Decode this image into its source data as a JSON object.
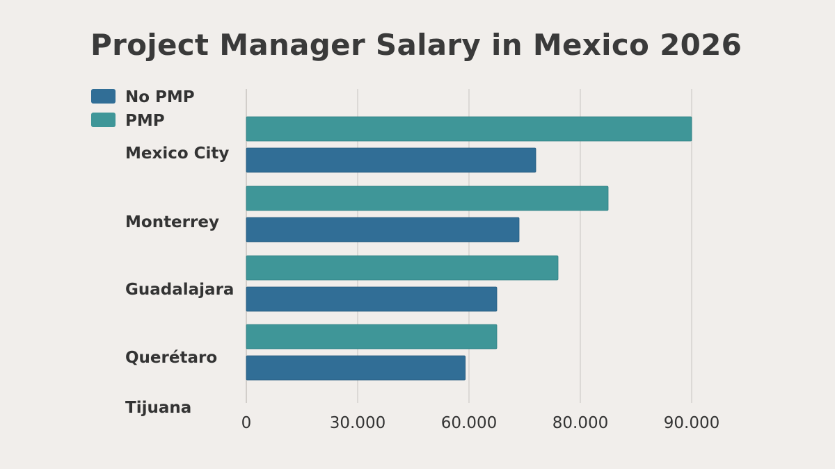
{
  "chart_data": {
    "type": "bar",
    "orientation": "horizontal",
    "title": "Project Manager Salary in Mexico 2026",
    "categories": [
      "Mexico City",
      "Monterrey",
      "Guadalajara",
      "Querétaro",
      "Tijuana"
    ],
    "series": [
      {
        "name": "No PMP",
        "color": "#316e96",
        "values": [
          72000,
          69000,
          65000,
          59000,
          null
        ]
      },
      {
        "name": "PMP",
        "color": "#3f9698",
        "values": [
          91000,
          82500,
          76000,
          65000,
          null
        ]
      }
    ],
    "x_ticks": [
      "0",
      "30.000",
      "60.000",
      "80.000",
      "90.000"
    ],
    "legend_position": "top-left",
    "grid": true
  }
}
